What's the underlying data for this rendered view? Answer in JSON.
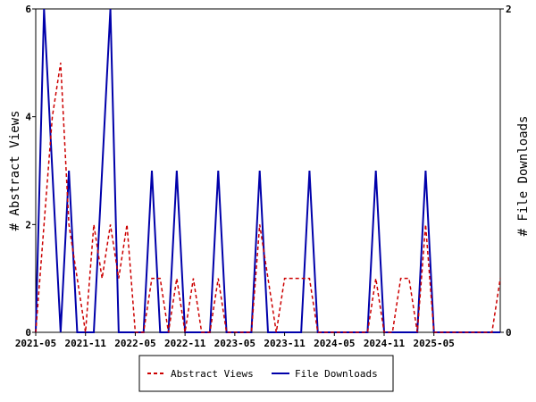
{
  "chart_data": {
    "type": "line",
    "title": "",
    "ylabel_left": "# Abstract Views",
    "ylabel_right": "# File Downloads",
    "ylim_left": [
      0,
      6
    ],
    "ylim_right": [
      0,
      2
    ],
    "yticks_left": [
      "0",
      "2",
      "4",
      "6"
    ],
    "yticks_right": [
      "0",
      "2"
    ],
    "xticks": [
      {
        "label": "2021-05",
        "index": 0
      },
      {
        "label": "2021-11",
        "index": 6
      },
      {
        "label": "2022-05",
        "index": 12
      },
      {
        "label": "2022-11",
        "index": 18
      },
      {
        "label": "2023-05",
        "index": 24
      },
      {
        "label": "2023-11",
        "index": 30
      },
      {
        "label": "2024-05",
        "index": 36
      },
      {
        "label": "2024-11",
        "index": 42
      },
      {
        "label": "2025-05",
        "index": 48
      }
    ],
    "grid": false,
    "legend_position": "bottom",
    "x_months": [
      "2021-05",
      "2021-06",
      "2021-07",
      "2021-08",
      "2021-09",
      "2021-10",
      "2021-11",
      "2021-12",
      "2022-01",
      "2022-02",
      "2022-03",
      "2022-04",
      "2022-05",
      "2022-06",
      "2022-07",
      "2022-08",
      "2022-09",
      "2022-10",
      "2022-11",
      "2022-12",
      "2023-01",
      "2023-02",
      "2023-03",
      "2023-04",
      "2023-05",
      "2023-06",
      "2023-07",
      "2023-08",
      "2023-09",
      "2023-10",
      "2023-11",
      "2023-12",
      "2024-01",
      "2024-02",
      "2024-03",
      "2024-04",
      "2024-05",
      "2024-06",
      "2024-07",
      "2024-08",
      "2024-09",
      "2024-10",
      "2024-11",
      "2024-12",
      "2025-01",
      "2025-02",
      "2025-03",
      "2025-04",
      "2025-05",
      "2025-06",
      "2025-07",
      "2025-08",
      "2025-09",
      "2025-10",
      "2025-11",
      "2025-12",
      "2026-01"
    ],
    "series": [
      {
        "name": "Abstract Views",
        "axis": "left",
        "color": "#cc0000",
        "dash": true,
        "values": [
          0,
          2,
          4,
          5,
          2,
          1,
          0,
          2,
          1,
          2,
          1,
          2,
          0,
          0,
          1,
          1,
          0,
          1,
          0,
          1,
          0,
          0,
          1,
          0,
          0,
          0,
          0,
          2,
          1,
          0,
          1,
          1,
          1,
          1,
          0,
          0,
          0,
          0,
          0,
          0,
          0,
          1,
          0,
          0,
          1,
          1,
          0,
          2,
          0,
          0,
          0,
          0,
          0,
          0,
          0,
          0,
          1
        ]
      },
      {
        "name": "File Downloads",
        "axis": "right",
        "color": "#0000aa",
        "dash": false,
        "values": [
          0,
          2,
          1,
          0,
          1,
          0,
          0,
          0,
          1,
          2,
          0,
          0,
          0,
          0,
          1,
          0,
          0,
          1,
          0,
          0,
          0,
          0,
          1,
          0,
          0,
          0,
          0,
          1,
          0,
          0,
          0,
          0,
          0,
          1,
          0,
          0,
          0,
          0,
          0,
          0,
          0,
          1,
          0,
          0,
          0,
          0,
          0,
          1,
          0,
          0,
          0,
          0,
          0,
          0,
          0,
          0,
          0
        ]
      }
    ]
  },
  "colors": {
    "views": "#cc0000",
    "downloads": "#0000aa",
    "axis": "#000000"
  }
}
